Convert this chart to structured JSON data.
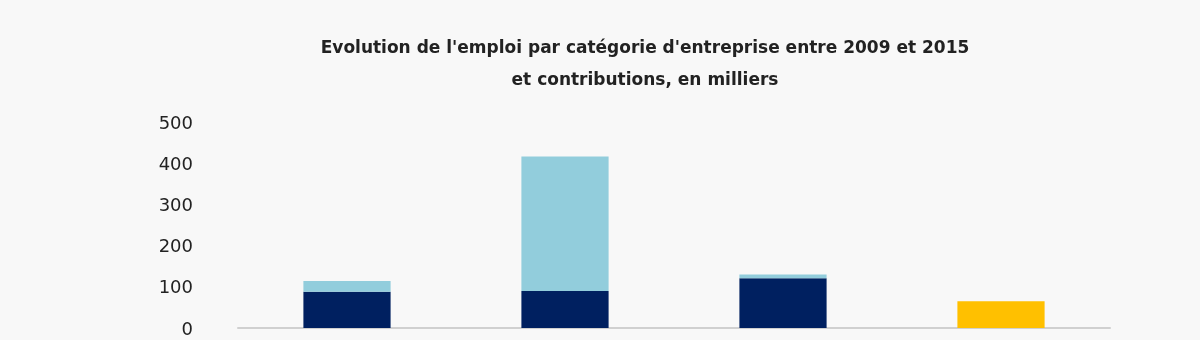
{
  "chart_data": {
    "type": "bar",
    "title": "Evolution de l'emploi par catégorie d'entreprise entre 2009 et 2015\net contributions, en milliers",
    "categories": [
      null,
      null,
      null,
      null
    ],
    "stacked": true,
    "ylim": [
      0,
      500
    ],
    "yticks": [
      0,
      100,
      200,
      300,
      400,
      500
    ],
    "grid": false,
    "series": [
      {
        "color": "#ffc000",
        "values": [
          null,
          null,
          null,
          65
        ]
      },
      {
        "color": "#002060",
        "values": [
          88,
          90,
          121,
          null
        ]
      },
      {
        "color": "#92cddc",
        "values": [
          26,
          326,
          9,
          null
        ]
      }
    ]
  }
}
